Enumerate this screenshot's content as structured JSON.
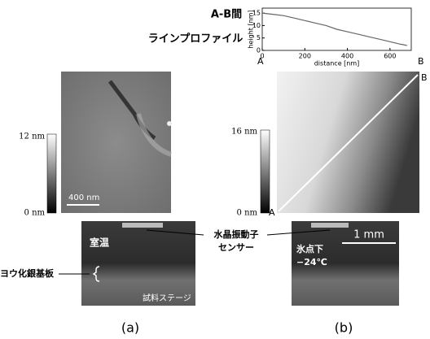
{
  "profile": {
    "type": "line",
    "title_lines": [
      "A-B間",
      "ラインプロファイル"
    ],
    "y_label": "height [nm]",
    "x_label": "distance [nm]",
    "x": [
      0,
      50,
      100,
      150,
      200,
      250,
      300,
      350,
      400,
      450,
      500,
      550,
      600,
      650,
      680
    ],
    "values": [
      15,
      14.5,
      14,
      13,
      12,
      11,
      10,
      8.5,
      7.5,
      6.5,
      5.5,
      4.5,
      3.5,
      2.5,
      2
    ],
    "color": "#666666",
    "xlim": [
      0,
      700
    ],
    "ylim": [
      0,
      17
    ],
    "xticks": [
      0,
      200,
      400,
      600
    ],
    "yticks": [
      0,
      5,
      10,
      15
    ],
    "start_label": "A",
    "end_label": "B"
  },
  "panel_a": {
    "colorbar_max": "12 nm",
    "colorbar_min": "0 nm",
    "scale_bar": "400 nm",
    "temperature": "室温",
    "substrate": "ヨウ化銀基板",
    "stage": "試料ステージ",
    "caption": "(a)"
  },
  "panel_b": {
    "colorbar_max": "16 nm",
    "colorbar_min": "0 nm",
    "point_a": "A",
    "point_b": "B",
    "temperature_lines": [
      "氷点下",
      "−24℃"
    ],
    "scale_bar": "1 mm",
    "caption": "(b)"
  },
  "sensor_label_lines": [
    "水晶振動子",
    "センサー"
  ]
}
